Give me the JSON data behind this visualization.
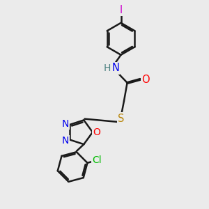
{
  "bg_color": "#ebebeb",
  "bond_color": "#1a1a1a",
  "bond_width": 1.8,
  "dbo": 0.055,
  "atom_colors": {
    "N": "#0000ee",
    "O": "#ff0000",
    "S": "#b8860b",
    "Cl": "#00bb00",
    "I": "#cc00cc",
    "H": "#4a8080"
  },
  "fs": 10.5
}
